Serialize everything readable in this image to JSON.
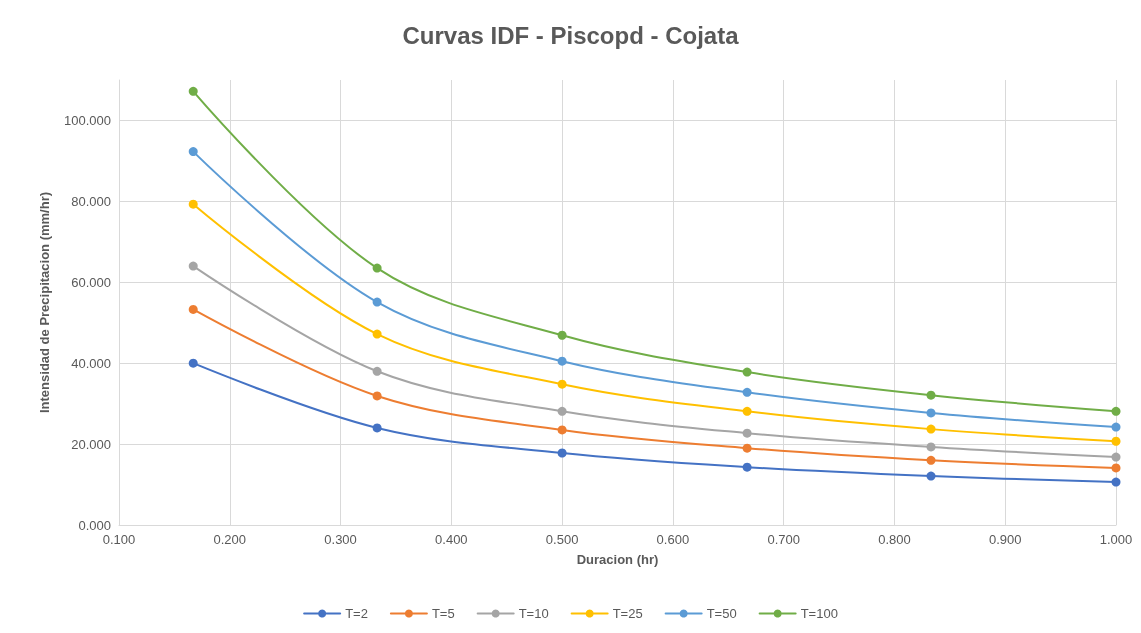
{
  "chart_data": {
    "type": "line",
    "title": "Curvas IDF - Piscopd - Cojata",
    "xlabel": "Duracion (hr)",
    "ylabel": "Intensidad de Precipitacion (mm/hr)",
    "x": [
      0.167,
      0.333,
      0.5,
      0.667,
      0.833,
      1.0
    ],
    "series": [
      {
        "name": "T=2",
        "color": "#4472c4",
        "values": [
          40.0,
          24.0,
          17.8,
          14.3,
          12.1,
          10.6
        ]
      },
      {
        "name": "T=5",
        "color": "#ed7d31",
        "values": [
          53.3,
          31.9,
          23.5,
          19.0,
          16.0,
          14.1
        ]
      },
      {
        "name": "T=10",
        "color": "#a5a5a5",
        "values": [
          64.0,
          38.0,
          28.1,
          22.7,
          19.3,
          16.8
        ]
      },
      {
        "name": "T=25",
        "color": "#ffc000",
        "values": [
          79.3,
          47.2,
          34.8,
          28.1,
          23.7,
          20.7
        ]
      },
      {
        "name": "T=50",
        "color": "#5b9bd5",
        "values": [
          92.3,
          55.1,
          40.5,
          32.8,
          27.7,
          24.2
        ]
      },
      {
        "name": "T=100",
        "color": "#70ad47",
        "values": [
          107.2,
          63.5,
          46.9,
          37.8,
          32.1,
          28.1
        ]
      }
    ],
    "xlim": [
      0.1,
      1.0
    ],
    "xticks": [
      {
        "value": 0.1,
        "label": "0.100"
      },
      {
        "value": 0.2,
        "label": "0.200"
      },
      {
        "value": 0.3,
        "label": "0.300"
      },
      {
        "value": 0.4,
        "label": "0.400"
      },
      {
        "value": 0.5,
        "label": "0.500"
      },
      {
        "value": 0.6,
        "label": "0.600"
      },
      {
        "value": 0.7,
        "label": "0.700"
      },
      {
        "value": 0.8,
        "label": "0.800"
      },
      {
        "value": 0.9,
        "label": "0.900"
      },
      {
        "value": 1.0,
        "label": "1.000"
      }
    ],
    "ylim": [
      0,
      110
    ],
    "yticks": [
      {
        "value": 0,
        "label": "0.000"
      },
      {
        "value": 20,
        "label": "20.000"
      },
      {
        "value": 40,
        "label": "40.000"
      },
      {
        "value": 60,
        "label": "60.000"
      },
      {
        "value": 80,
        "label": "80.000"
      },
      {
        "value": 100,
        "label": "100.000"
      }
    ],
    "grid": true,
    "legend": "bottom",
    "marker": "circle",
    "line_style": "solid"
  }
}
